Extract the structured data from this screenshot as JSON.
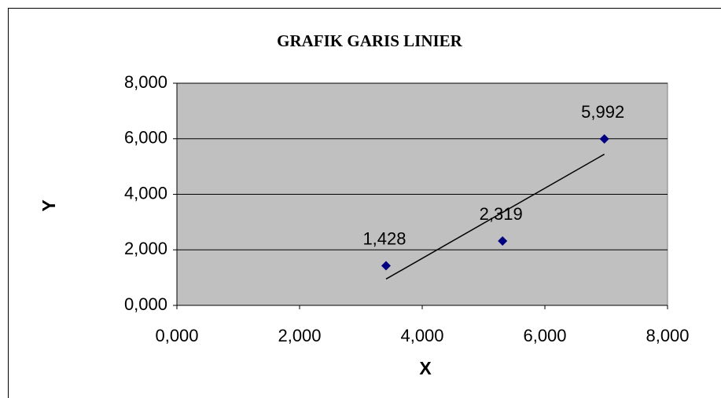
{
  "chart_data": {
    "type": "scatter",
    "title": "GRAFIK GARIS LINIER",
    "xlabel": "X",
    "ylabel": "Y",
    "series": [
      {
        "name": null,
        "color": "#000080",
        "x": [
          3.41,
          5.31,
          6.97
        ],
        "values": [
          1.428,
          2.319,
          5.992
        ],
        "value_labels": [
          "1,428",
          "2,319",
          "5,992"
        ]
      }
    ],
    "trendline": "linear",
    "trendline_color": "#000000",
    "plot_background": "#c0c0c0",
    "grid": true,
    "xlim": [
      0,
      8
    ],
    "xticks": [
      {
        "value": 0,
        "label": "0,000"
      },
      {
        "value": 2,
        "label": "2,000"
      },
      {
        "value": 4,
        "label": "4,000"
      },
      {
        "value": 6,
        "label": "6,000"
      },
      {
        "value": 8,
        "label": "8,000"
      }
    ],
    "ylim": [
      0,
      8
    ],
    "yticks": [
      {
        "value": 0,
        "label": "0,000"
      },
      {
        "value": 2,
        "label": "2,000"
      },
      {
        "value": 4,
        "label": "4,000"
      },
      {
        "value": 6,
        "label": "6,000"
      },
      {
        "value": 8,
        "label": "8,000"
      }
    ]
  }
}
